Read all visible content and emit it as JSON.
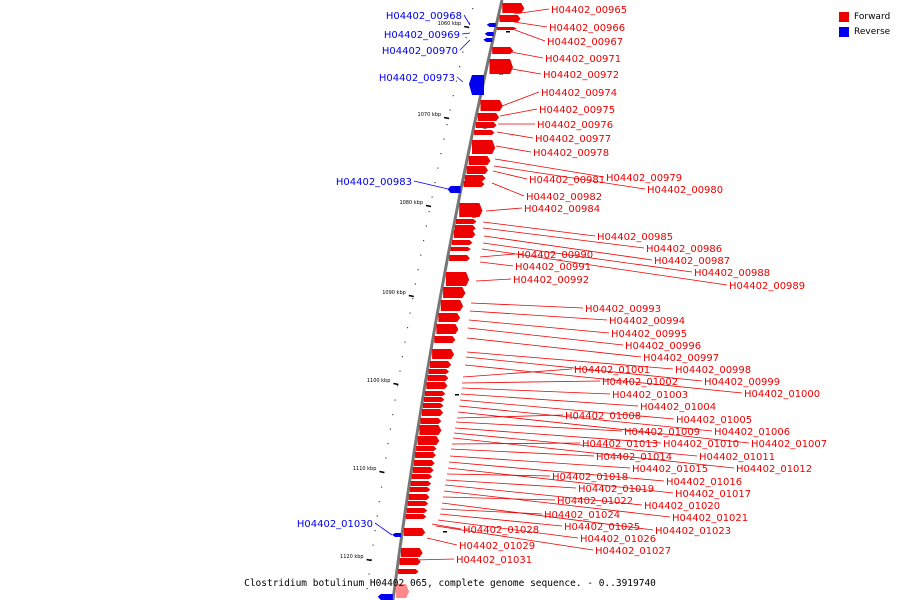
{
  "colors": {
    "forward": "#ee0000",
    "reverse": "#0000ee",
    "backbone": "#777777"
  },
  "legend": {
    "forward_label": "Forward",
    "reverse_label": "Reverse"
  },
  "caption": "Clostridium botulinum H04402 065, complete genome sequence. - 0..3919740",
  "ticks": [
    "1060 kbp",
    "1070 kbp",
    "1080 kbp",
    "1090 kbp",
    "1100 kbp",
    "1110 kbp",
    "1120 kbp"
  ],
  "genes": {
    "reverse": [
      "H04402_00968",
      "H04402_00969",
      "H04402_00970",
      "H04402_00973",
      "H04402_00983",
      "H04402_01030"
    ],
    "forward_labels": [
      "H04402_00965",
      "H04402_00966",
      "H04402_00967",
      "H04402_00971",
      "H04402_00972",
      "H04402_00974",
      "H04402_00975",
      "H04402_00976",
      "H04402_00977",
      "H04402_00978",
      "H04402_00979",
      "H04402_00980",
      "H04402_00981",
      "H04402_00982",
      "H04402_00984",
      "H04402_00985",
      "H04402_00986",
      "H04402_00987",
      "H04402_00988",
      "H04402_00989",
      "H04402_00990",
      "H04402_00991",
      "H04402_00992",
      "H04402_00993",
      "H04402_00994",
      "H04402_00995",
      "H04402_00996",
      "H04402_00997",
      "H04402_00998",
      "H04402_00999",
      "H04402_01000",
      "H04402_01001",
      "H04402_01002",
      "H04402_01003",
      "H04402_01004",
      "H04402_01005",
      "H04402_01006",
      "H04402_01007",
      "H04402_01008",
      "H04402_01009",
      "H04402_01010",
      "H04402_01011",
      "H04402_01012",
      "H04402_01013",
      "H04402_01014",
      "H04402_01015",
      "H04402_01016",
      "H04402_01017",
      "H04402_01018",
      "H04402_01019",
      "H04402_01020",
      "H04402_01021",
      "H04402_01022",
      "H04402_01023",
      "H04402_01024",
      "H04402_01025",
      "H04402_01026",
      "H04402_01027",
      "H04402_01028",
      "H04402_01029",
      "H04402_01031"
    ]
  }
}
